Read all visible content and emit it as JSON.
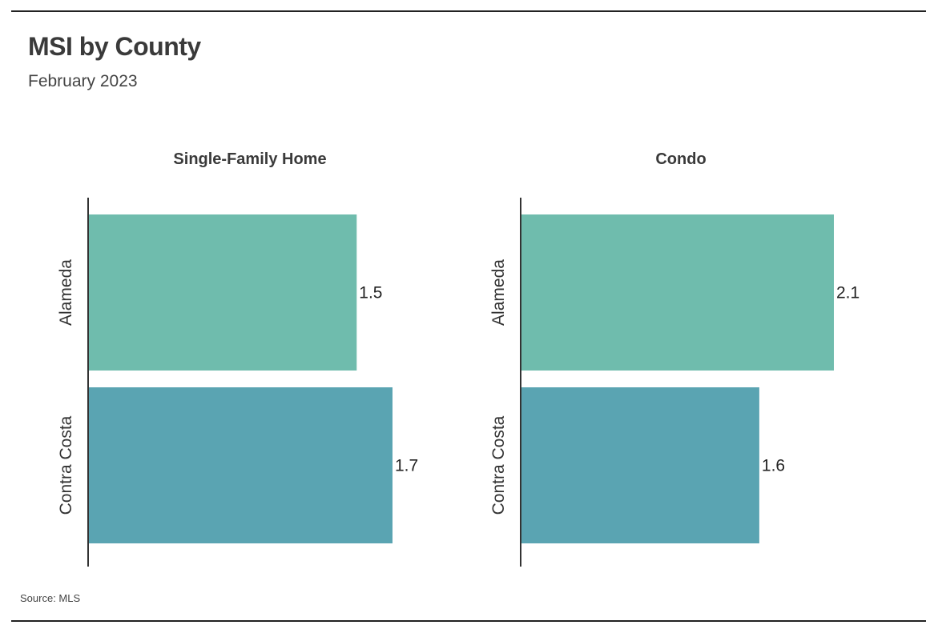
{
  "title": "MSI by County",
  "subtitle": "February 2023",
  "source": "Source:  MLS",
  "colors": {
    "alameda": "#6fbcad",
    "contra_costa": "#5aa4b2",
    "axis": "#333333"
  },
  "chart_data": [
    {
      "type": "bar",
      "orientation": "horizontal",
      "title": "Single-Family Home",
      "categories": [
        "Alameda",
        "Contra Costa"
      ],
      "values": [
        1.5,
        1.7
      ],
      "data_labels": [
        "1.5",
        "1.7"
      ],
      "xlim": [
        0,
        1.7
      ],
      "grid": false
    },
    {
      "type": "bar",
      "orientation": "horizontal",
      "title": "Condo",
      "categories": [
        "Alameda",
        "Contra Costa"
      ],
      "values": [
        2.1,
        1.6
      ],
      "data_labels": [
        "2.1",
        "1.6"
      ],
      "xlim": [
        0,
        2.1
      ],
      "grid": false
    }
  ]
}
